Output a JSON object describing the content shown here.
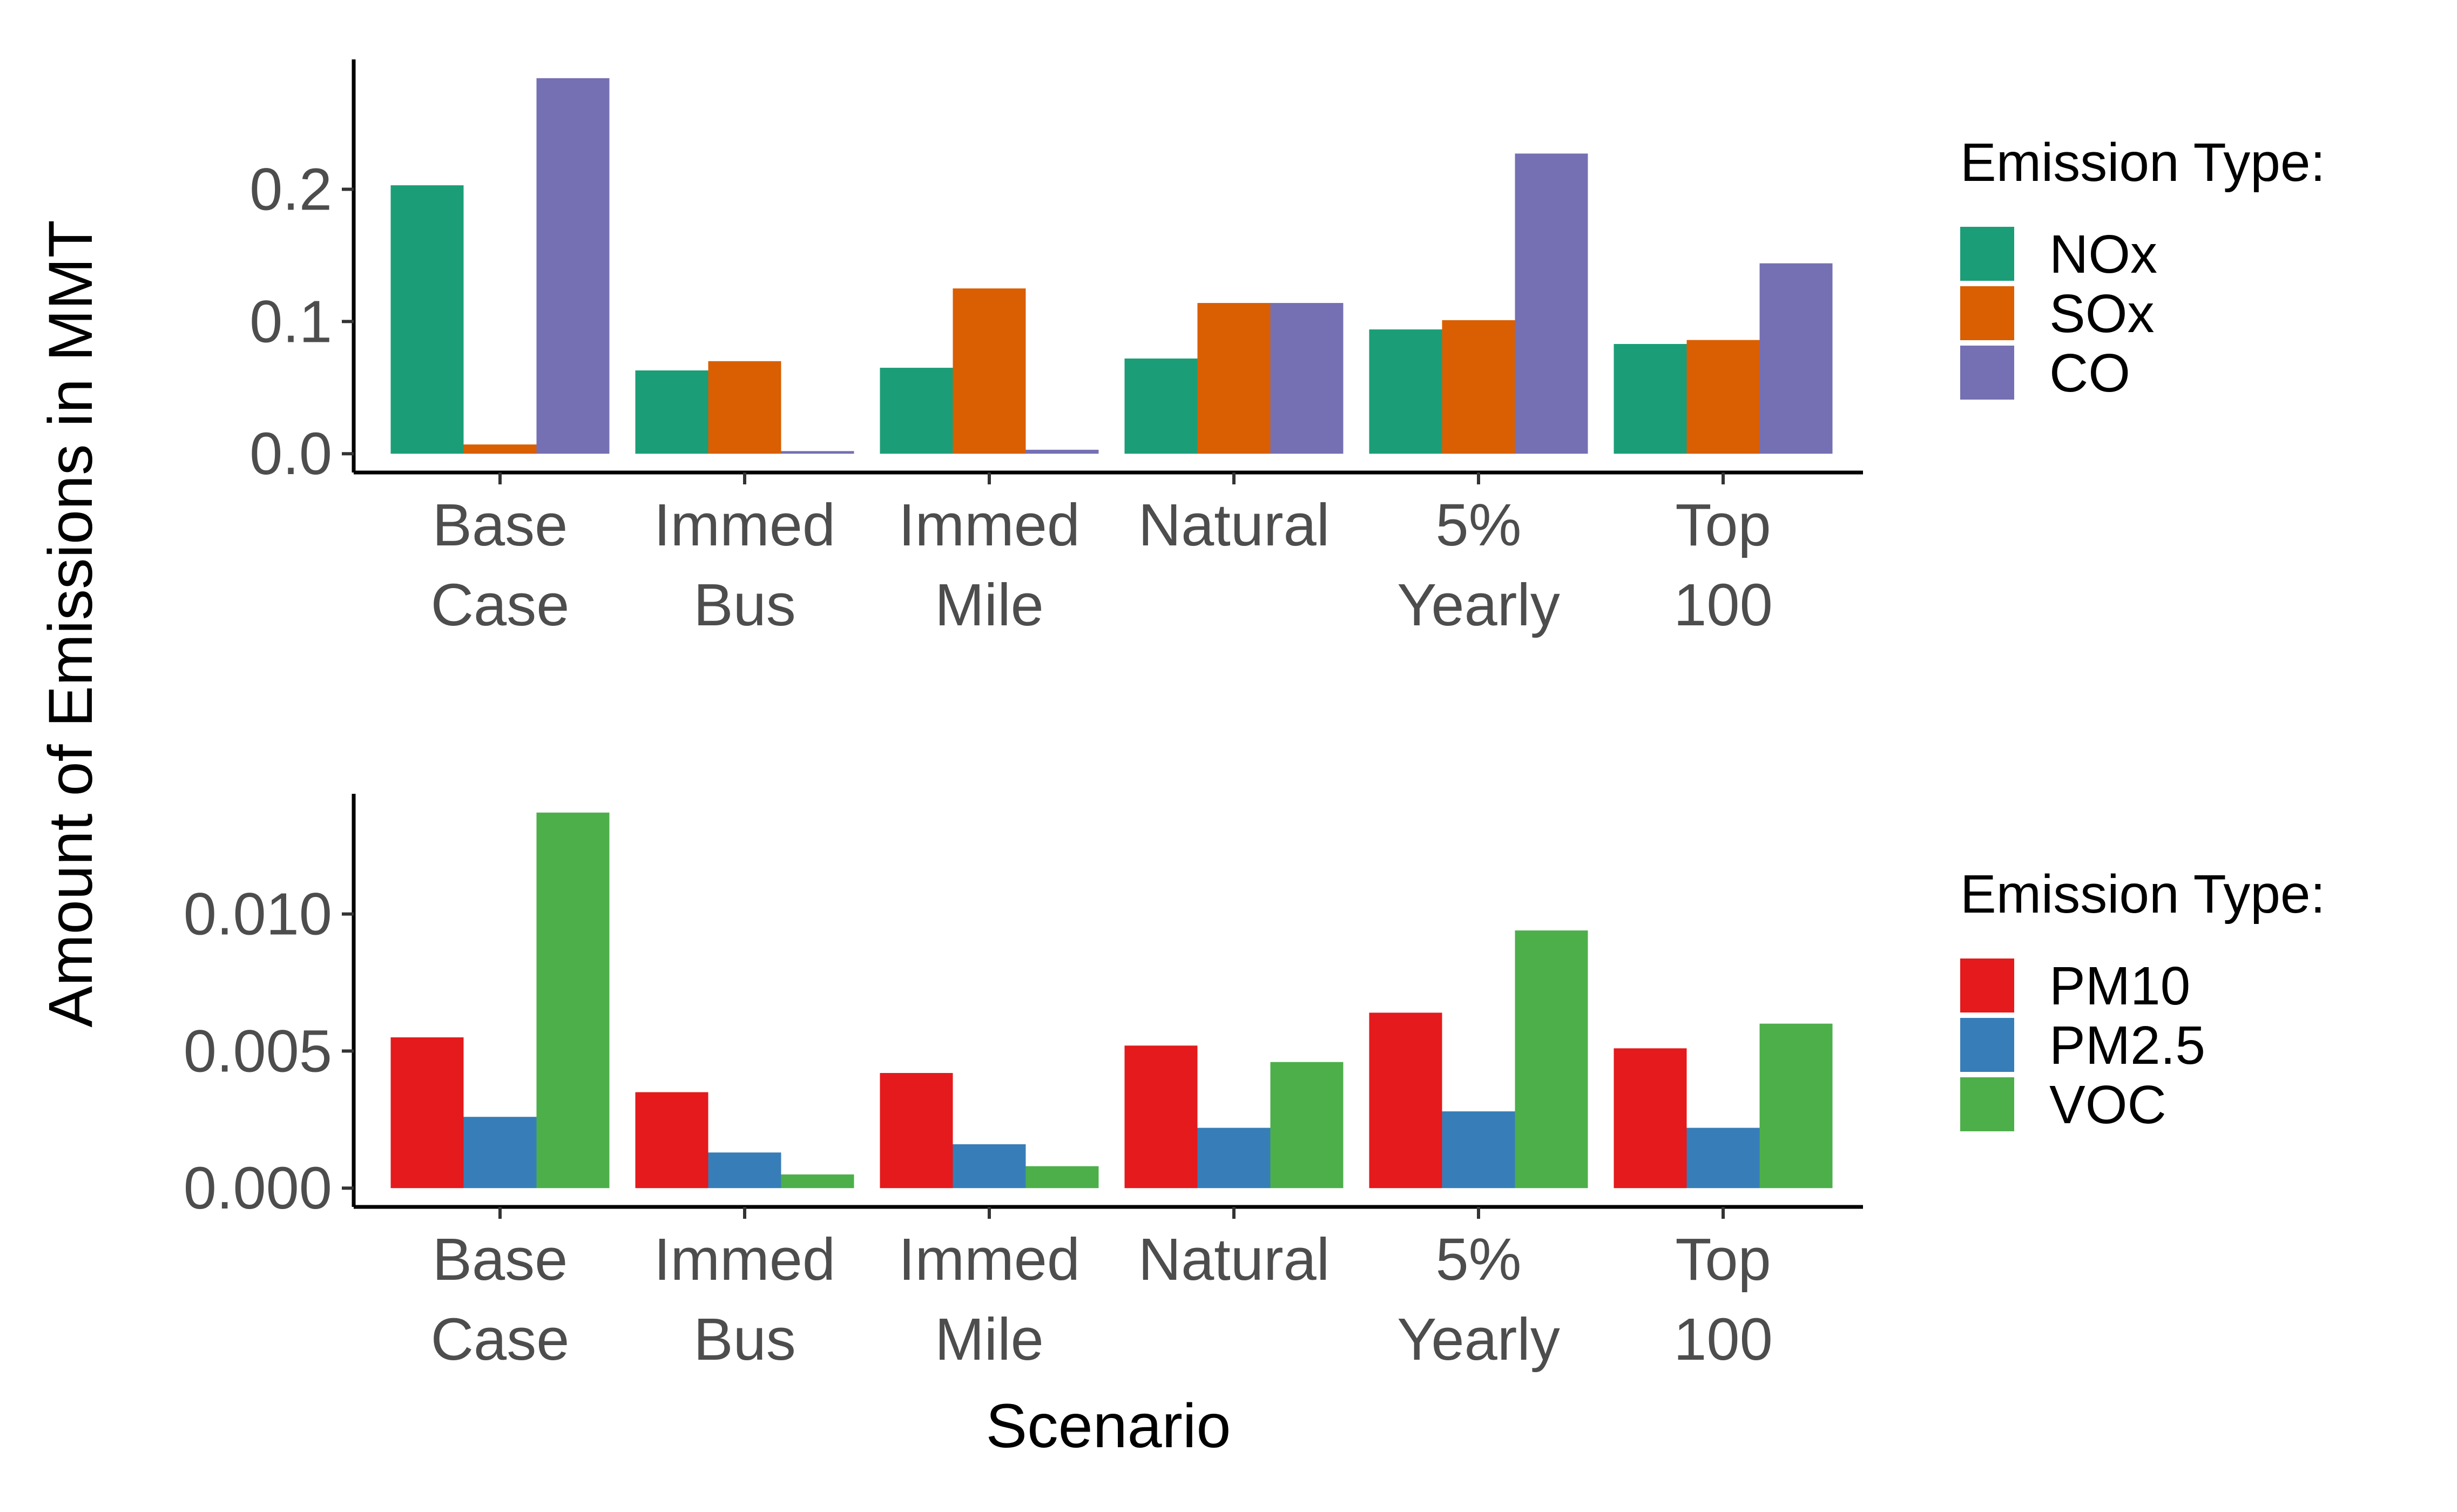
{
  "y_axis_title": "Amount of Emissions in MMT",
  "chart_data": [
    {
      "type": "bar",
      "categories": [
        [
          "Base",
          "Case"
        ],
        [
          "Immed",
          "Bus"
        ],
        [
          "Immed",
          "Mile"
        ],
        [
          "Natural"
        ],
        [
          "5%",
          "Yearly"
        ],
        [
          "Top",
          "100"
        ]
      ],
      "series": [
        {
          "name": "NOx",
          "color": "#1b9e77",
          "values": [
            0.203,
            0.063,
            0.065,
            0.072,
            0.094,
            0.083
          ]
        },
        {
          "name": "SOx",
          "color": "#d95f02",
          "values": [
            0.007,
            0.07,
            0.125,
            0.114,
            0.101,
            0.086
          ]
        },
        {
          "name": "CO",
          "color": "#7570b3",
          "values": [
            0.284,
            0.002,
            0.003,
            0.114,
            0.227,
            0.144
          ]
        }
      ],
      "yticks": [
        0.0,
        0.1,
        0.2
      ],
      "ytick_labels": [
        "0.0",
        "0.1",
        "0.2"
      ],
      "ylim": [
        -0.0142,
        0.2982
      ],
      "xlabel": "",
      "legend_title": "Emission Type:",
      "legend_position": "right"
    },
    {
      "type": "bar",
      "categories": [
        [
          "Base",
          "Case"
        ],
        [
          "Immed",
          "Bus"
        ],
        [
          "Immed",
          "Mile"
        ],
        [
          "Natural"
        ],
        [
          "5%",
          "Yearly"
        ],
        [
          "Top",
          "100"
        ]
      ],
      "series": [
        {
          "name": "PM10",
          "color": "#e41a1c",
          "values": [
            0.0055,
            0.0035,
            0.0042,
            0.0052,
            0.0064,
            0.0051
          ]
        },
        {
          "name": "PM2.5",
          "color": "#377eb8",
          "values": [
            0.0026,
            0.0013,
            0.0016,
            0.0022,
            0.0028,
            0.0022
          ]
        },
        {
          "name": "VOC",
          "color": "#4daf4a",
          "values": [
            0.0137,
            0.0005,
            0.0008,
            0.0046,
            0.0094,
            0.006
          ]
        }
      ],
      "yticks": [
        0.0,
        0.005,
        0.01
      ],
      "ytick_labels": [
        "0.000",
        "0.005",
        "0.010"
      ],
      "ylim": [
        -0.000685,
        0.014385
      ],
      "xlabel": "Scenario",
      "legend_title": "Emission Type:",
      "legend_position": "right"
    }
  ]
}
